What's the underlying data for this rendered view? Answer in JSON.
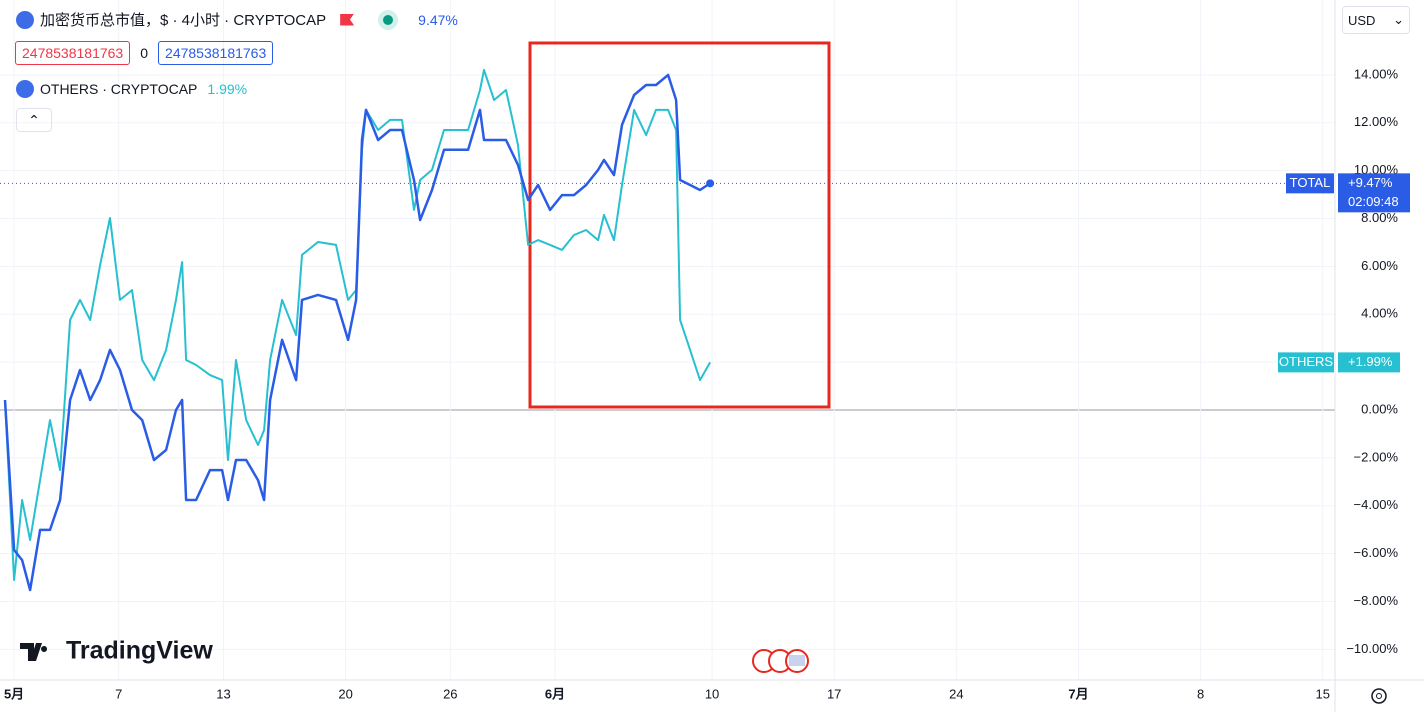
{
  "chart_data": {
    "type": "line",
    "legend": {
      "title": "加密货币总市值，$ · 4小时 · CRYPTOCAP",
      "value": "9.47%",
      "fields": [
        "2478538181763",
        "0",
        "2478538181763"
      ],
      "compare_title": "OTHERS · CRYPTOCAP",
      "compare_value": "1.99%"
    },
    "currency": "USD",
    "watermark": "TradingView",
    "x": [
      0.48,
      1.0,
      1.46,
      1.92,
      2.49,
      3.06,
      3.64,
      4.21,
      4.78,
      5.36,
      5.93,
      6.5,
      7.07,
      7.76,
      8.34,
      9.02,
      9.71,
      10.28,
      10.63,
      10.86,
      11.43,
      12.23,
      12.92,
      13.26,
      13.72,
      14.3,
      14.98,
      15.33,
      15.67,
      16.36,
      17.16,
      17.5,
      18.42,
      19.45,
      20.14,
      20.6,
      20.94,
      21.17,
      21.86,
      22.55,
      23.23,
      23.92,
      24.27,
      24.95,
      25.64,
      26.33,
      27.02,
      27.7,
      27.93,
      28.51,
      29.19,
      29.88,
      30.46,
      31.03,
      31.72,
      32.4,
      33.09,
      33.78,
      34.47,
      34.81,
      35.38,
      35.84,
      36.53,
      37.22,
      37.79,
      38.48,
      38.94,
      39.17,
      39.74,
      40.31,
      40.89
    ],
    "series": [
      {
        "name": "TOTAL",
        "color": "#2a5ce6",
        "last_label": "+9.47%",
        "countdown": "02:09:48",
        "values": [
          0.42,
          -5.85,
          -6.27,
          -7.52,
          -5.01,
          -5.01,
          -3.76,
          0.42,
          1.67,
          0.42,
          1.25,
          2.51,
          1.67,
          0,
          -0.42,
          -2.09,
          -1.67,
          0,
          0.42,
          -3.76,
          -3.76,
          -2.51,
          -2.51,
          -3.76,
          -2.09,
          -2.09,
          -2.93,
          -3.76,
          0.42,
          2.93,
          1.25,
          4.6,
          4.81,
          4.6,
          2.93,
          4.6,
          11.28,
          12.54,
          11.28,
          11.7,
          11.7,
          9.61,
          7.94,
          9.19,
          10.87,
          10.87,
          10.87,
          12.54,
          11.28,
          11.28,
          11.28,
          10.24,
          8.78,
          9.4,
          8.36,
          8.98,
          8.98,
          9.4,
          10.03,
          10.45,
          9.82,
          11.91,
          13.16,
          13.58,
          13.58,
          14.0,
          12.95,
          9.61,
          9.4,
          9.19,
          9.47
        ]
      },
      {
        "name": "OTHERS",
        "color": "#26c0d0",
        "last_label": "+1.99%",
        "values": [
          0.42,
          -7.1,
          -3.76,
          -5.43,
          -2.93,
          -0.42,
          -2.51,
          3.76,
          4.6,
          3.76,
          6.06,
          8.02,
          4.6,
          5.01,
          2.09,
          1.25,
          2.51,
          4.6,
          6.18,
          2.09,
          1.88,
          1.46,
          1.25,
          -2.09,
          2.09,
          -0.42,
          -1.46,
          -0.84,
          2.09,
          4.6,
          3.13,
          6.48,
          7.02,
          6.9,
          4.6,
          5.01,
          10.87,
          12.54,
          11.7,
          12.12,
          12.12,
          8.36,
          9.61,
          10.03,
          11.7,
          11.7,
          11.7,
          13.37,
          14.21,
          12.95,
          13.37,
          11.07,
          6.9,
          7.1,
          6.9,
          6.69,
          7.31,
          7.52,
          7.1,
          8.15,
          7.1,
          9.4,
          12.54,
          11.49,
          12.54,
          12.54,
          11.7,
          3.76,
          2.51,
          1.25,
          1.99
        ]
      }
    ],
    "xlim": [
      0.48,
      76.7
    ],
    "xticks": [
      {
        "value": 1,
        "label": "5月"
      },
      7,
      13,
      20,
      26,
      {
        "value": 32,
        "label": "6月"
      },
      {
        "value": 41,
        "label": "10"
      },
      {
        "value": 48,
        "label": "17"
      },
      {
        "value": 55,
        "label": "24"
      },
      {
        "value": 62,
        "label": "7月"
      },
      {
        "value": 69,
        "label": "8"
      },
      {
        "value": 76,
        "label": "15"
      }
    ],
    "ylim": [
      -11.28,
      17.13
    ],
    "yticks": [
      {
        "value": -10,
        "label": "−10.00%"
      },
      {
        "value": -8,
        "label": "−8.00%"
      },
      {
        "value": -6,
        "label": "−6.00%"
      },
      {
        "value": -4,
        "label": "−4.00%"
      },
      {
        "value": -2,
        "label": "−2.00%"
      },
      {
        "value": 0,
        "label": "0.00%"
      },
      {
        "value": 2,
        "label": "2.00%"
      },
      {
        "value": 4,
        "label": "4.00%"
      },
      {
        "value": 6,
        "label": "6.00%"
      },
      {
        "value": 8,
        "label": "8.00%"
      },
      {
        "value": 10,
        "label": "10.00%"
      },
      {
        "value": 12,
        "label": "12.00%"
      },
      {
        "value": 14,
        "label": "14.00%"
      }
    ],
    "grid": true
  }
}
